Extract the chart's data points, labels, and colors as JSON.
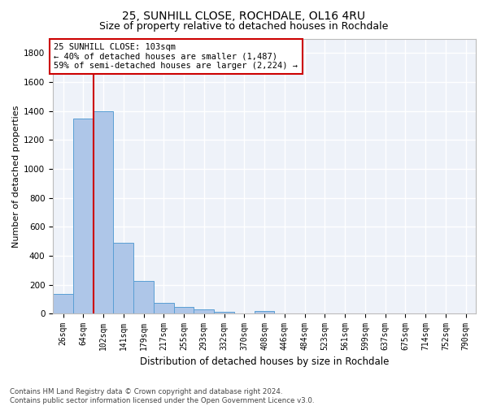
{
  "title_line1": "25, SUNHILL CLOSE, ROCHDALE, OL16 4RU",
  "title_line2": "Size of property relative to detached houses in Rochdale",
  "xlabel": "Distribution of detached houses by size in Rochdale",
  "ylabel": "Number of detached properties",
  "bar_labels": [
    "26sqm",
    "64sqm",
    "102sqm",
    "141sqm",
    "179sqm",
    "217sqm",
    "255sqm",
    "293sqm",
    "332sqm",
    "370sqm",
    "408sqm",
    "446sqm",
    "484sqm",
    "523sqm",
    "561sqm",
    "599sqm",
    "637sqm",
    "675sqm",
    "714sqm",
    "752sqm",
    "790sqm"
  ],
  "bar_values": [
    135,
    1350,
    1400,
    490,
    225,
    75,
    45,
    27,
    15,
    0,
    20,
    0,
    0,
    0,
    0,
    0,
    0,
    0,
    0,
    0,
    0
  ],
  "bar_color": "#aec6e8",
  "bar_edge_color": "#5a9fd4",
  "highlight_color": "#cc0000",
  "vline_x": 1.5,
  "annotation_text": "25 SUNHILL CLOSE: 103sqm\n← 40% of detached houses are smaller (1,487)\n59% of semi-detached houses are larger (2,224) →",
  "annotation_box_color": "#cc0000",
  "ylim": [
    0,
    1900
  ],
  "yticks": [
    0,
    200,
    400,
    600,
    800,
    1000,
    1200,
    1400,
    1600,
    1800
  ],
  "background_color": "#eef2f9",
  "grid_color": "#ffffff",
  "footer_text": "Contains HM Land Registry data © Crown copyright and database right 2024.\nContains public sector information licensed under the Open Government Licence v3.0.",
  "title_fontsize": 10,
  "subtitle_fontsize": 9,
  "axis_label_fontsize": 8.5,
  "tick_fontsize": 7,
  "annotation_fontsize": 7.5,
  "ylabel_fontsize": 8
}
